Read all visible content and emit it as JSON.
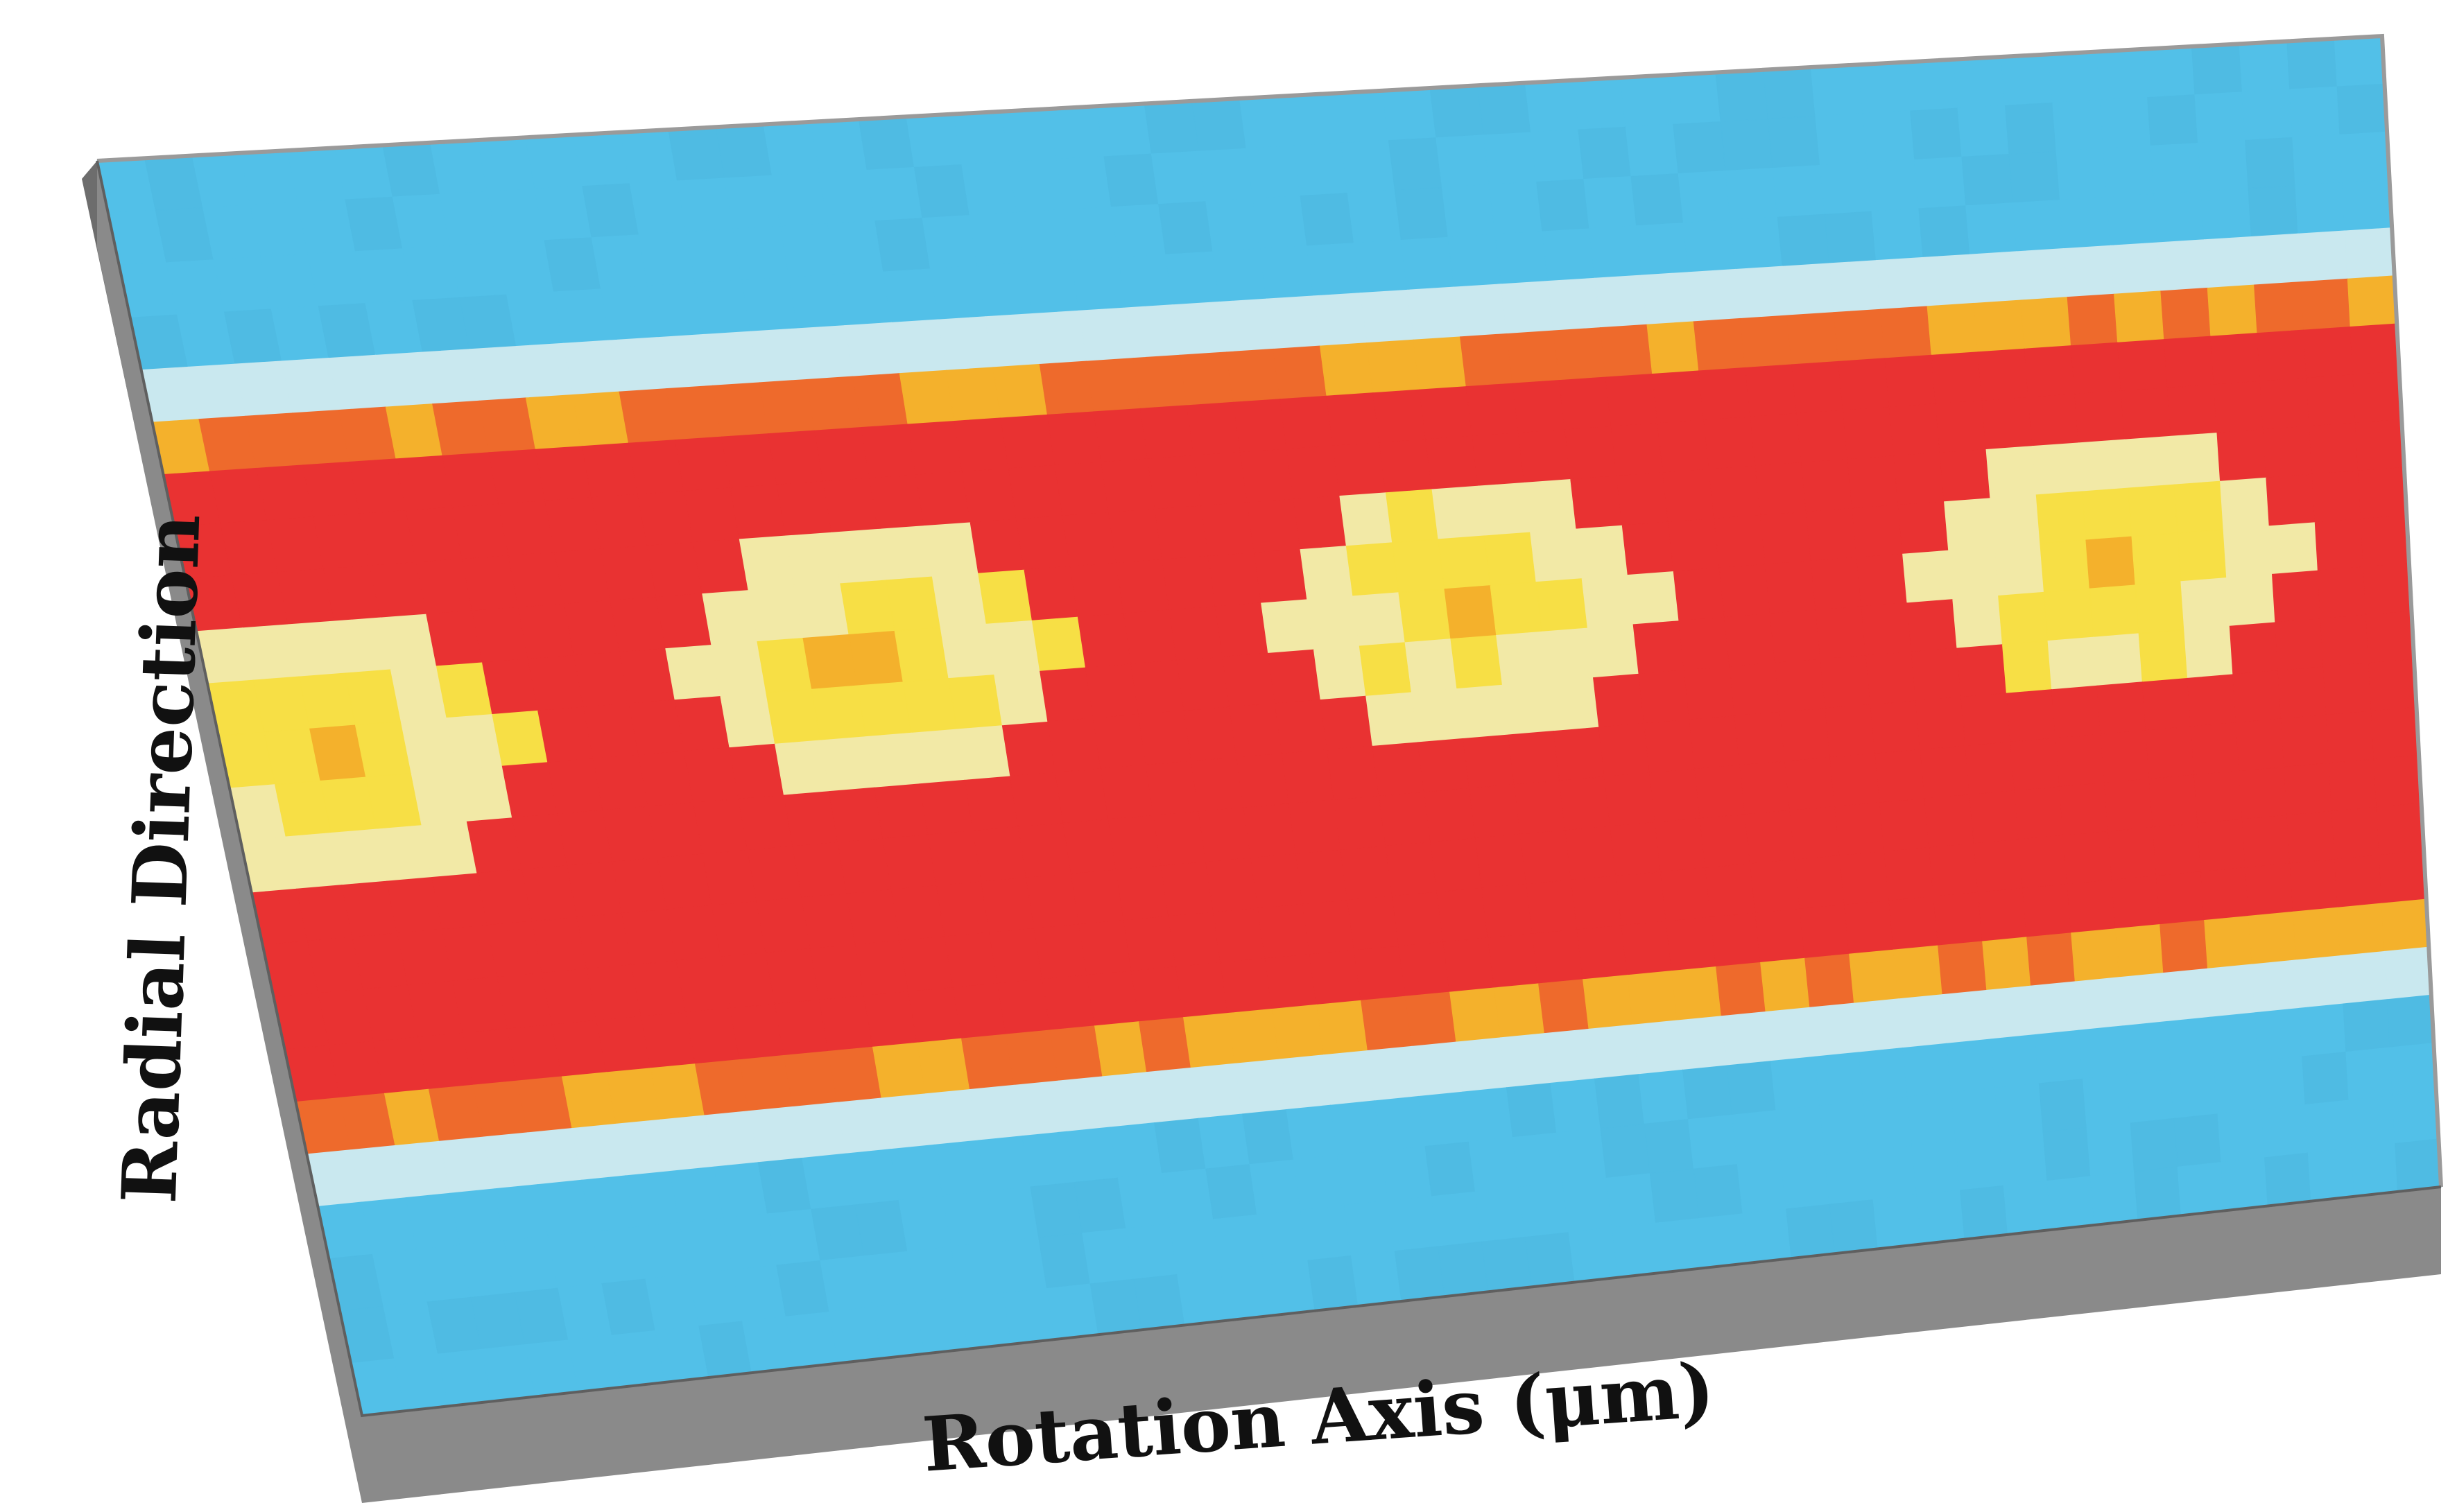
{
  "chart_data": {
    "type": "heatmap",
    "view": "3d-slab",
    "xlabel": "Rotation Axis (μm)",
    "ylabel": "Radial Direction",
    "title": "",
    "grid": false,
    "legend": "none",
    "rows": 24,
    "cols": 48,
    "colors": {
      "cold": "#52c0e8",
      "cold_alt": "#4fbbe3",
      "edge_pale": "#c9e8ef",
      "pale_yellow": "#f2e9a6",
      "yellow": "#f7df45",
      "amber": "#f4b12c",
      "orange": "#ee6a2c",
      "red": "#e93232",
      "side_gray": "#8a8a8a",
      "side_dark": "#6d6d6d",
      "edge_top": "#9a9a9a"
    },
    "hotspots": [
      {
        "col": 2,
        "row": 11
      },
      {
        "col": 14,
        "row": 10
      },
      {
        "col": 27,
        "row": 10
      },
      {
        "col": 41,
        "row": 10
      }
    ]
  }
}
